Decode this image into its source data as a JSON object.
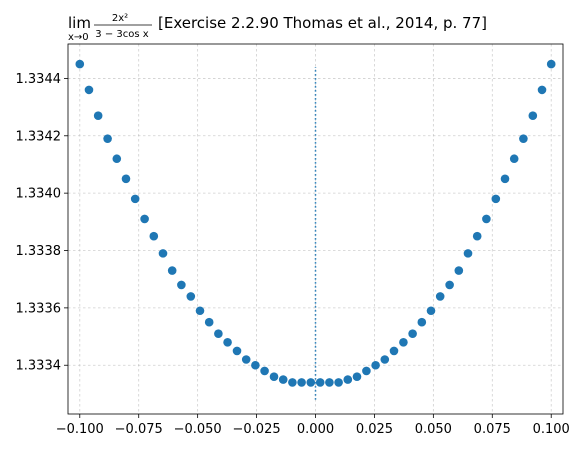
{
  "chart_data": {
    "type": "scatter",
    "title": {
      "lim": "lim",
      "under": "x→0",
      "numerator": "2x²",
      "denominator": "3 − 3cos x",
      "text": "[Exercise 2.2.90 Thomas et al., 2014, p. 77]"
    },
    "xlabel": "",
    "ylabel": "",
    "xlim": [
      -0.105,
      0.105
    ],
    "ylim": [
      1.33323,
      1.33452
    ],
    "x_ticks": [
      -0.1,
      -0.075,
      -0.05,
      -0.025,
      0.0,
      0.025,
      0.05,
      0.075,
      0.1
    ],
    "x_tick_labels": [
      "−0.100",
      "−0.075",
      "−0.050",
      "−0.025",
      "0.000",
      "0.025",
      "0.050",
      "0.075",
      "0.100"
    ],
    "y_ticks": [
      1.3334,
      1.3336,
      1.3338,
      1.334,
      1.3342,
      1.3344
    ],
    "y_tick_labels": [
      "1.3334",
      "1.3336",
      "1.3338",
      "1.3340",
      "1.3342",
      "1.3344"
    ],
    "grid": true,
    "marker_color": "#1f77b4",
    "vline": {
      "x": 0.0,
      "y_from": 1.33328,
      "y_to": 1.33444,
      "style": "dotted",
      "color": "#1f77b4"
    },
    "series": [
      {
        "x": [
          -0.1,
          -0.0961,
          -0.0922,
          -0.0882,
          -0.0843,
          -0.0804,
          -0.0765,
          -0.0725,
          -0.0686,
          -0.0647,
          -0.0608,
          -0.0569,
          -0.0529,
          -0.049,
          -0.0451,
          -0.0412,
          -0.0373,
          -0.0333,
          -0.0294,
          -0.0255,
          -0.0216,
          -0.0176,
          -0.0137,
          -0.0098,
          -0.0059,
          -0.002,
          0.002,
          0.0059,
          0.0098,
          0.0137,
          0.0176,
          0.0216,
          0.0255,
          0.0294,
          0.0333,
          0.0373,
          0.0412,
          0.0451,
          0.049,
          0.0529,
          0.0569,
          0.0608,
          0.0647,
          0.0686,
          0.0725,
          0.0765,
          0.0804,
          0.0843,
          0.0882,
          0.0922,
          0.0961,
          0.1
        ],
        "y": [
          1.33445,
          1.33436,
          1.33427,
          1.33419,
          1.33412,
          1.33405,
          1.33398,
          1.33391,
          1.33385,
          1.33379,
          1.33373,
          1.33368,
          1.33364,
          1.33359,
          1.33355,
          1.33351,
          1.33348,
          1.33345,
          1.33342,
          1.3334,
          1.33338,
          1.33336,
          1.33335,
          1.33334,
          1.33334,
          1.33334,
          1.33334,
          1.33334,
          1.33334,
          1.33335,
          1.33336,
          1.33338,
          1.3334,
          1.33342,
          1.33345,
          1.33348,
          1.33351,
          1.33355,
          1.33359,
          1.33364,
          1.33368,
          1.33373,
          1.33379,
          1.33385,
          1.33391,
          1.33398,
          1.33405,
          1.33412,
          1.33419,
          1.33427,
          1.33436,
          1.33445
        ]
      }
    ]
  }
}
